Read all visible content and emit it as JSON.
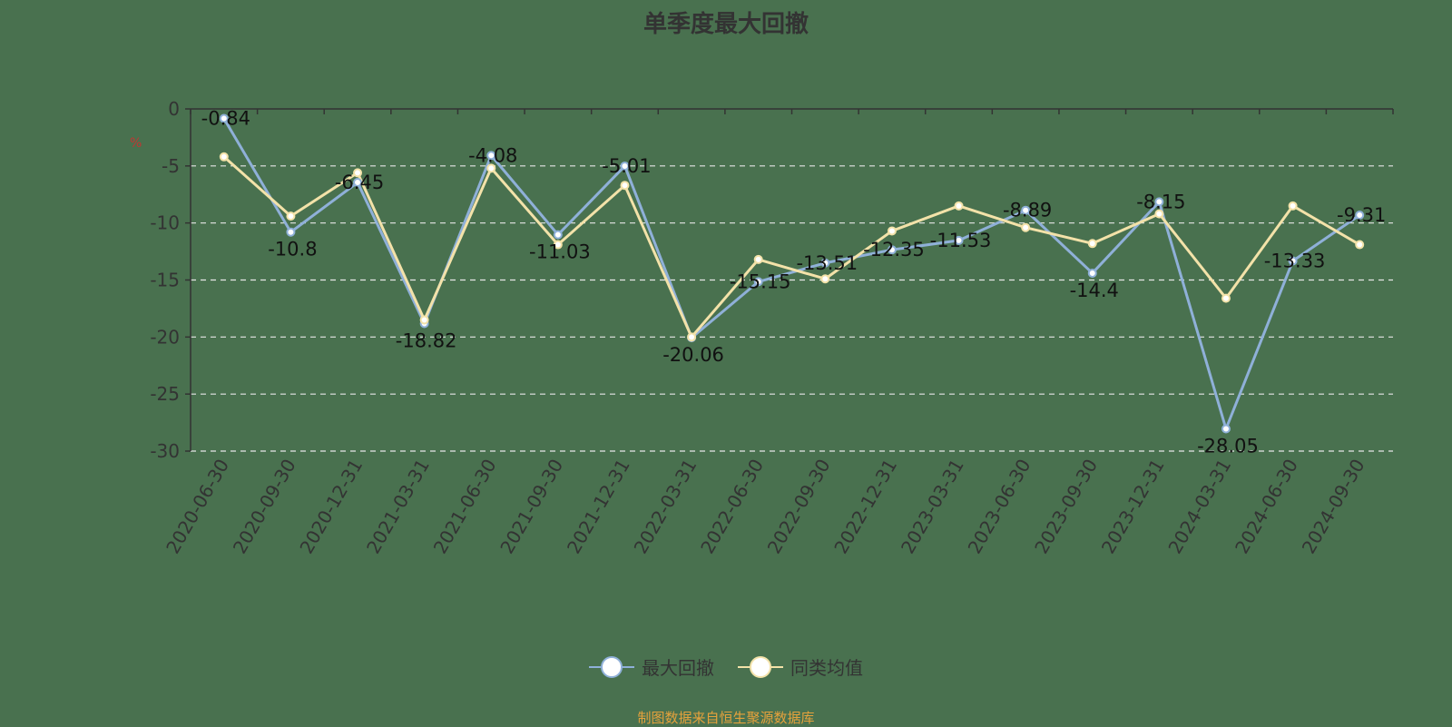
{
  "chart_data": {
    "type": "line",
    "title": "单季度最大回撤",
    "ylabel": "%",
    "source_note": "制图数据来自恒生聚源数据库",
    "ylim": [
      -30,
      0
    ],
    "yticks": [
      0,
      -5,
      -10,
      -15,
      -20,
      -25,
      -30
    ],
    "grid": true,
    "legend_position": "bottom",
    "categories": [
      "2020-06-30",
      "2020-09-30",
      "2020-12-31",
      "2021-03-31",
      "2021-06-30",
      "2021-09-30",
      "2021-12-31",
      "2022-03-31",
      "2022-06-30",
      "2022-09-30",
      "2022-12-31",
      "2023-03-31",
      "2023-06-30",
      "2023-09-30",
      "2023-12-31",
      "2024-03-31",
      "2024-06-30",
      "2024-09-30"
    ],
    "series": [
      {
        "name": "最大回撤",
        "color": "#8fb0d8",
        "values": [
          -0.84,
          -10.8,
          -6.45,
          -18.82,
          -4.08,
          -11.03,
          -5.01,
          -20.06,
          -15.15,
          -13.51,
          -12.35,
          -11.53,
          -8.89,
          -14.4,
          -8.15,
          -28.05,
          -13.33,
          -9.31
        ],
        "labels": [
          "-0.84",
          "-10.8",
          "-6.45",
          "-18.82",
          "-4.08",
          "-11.03",
          "-5.01",
          "-20.06",
          "-15.15",
          "-13.51",
          "-12.35",
          "-11.53",
          "-8.89",
          "-14.4",
          "-8.15",
          "-28.05",
          "-13.33",
          "-9.31"
        ]
      },
      {
        "name": "同类均值",
        "color": "#f3e2a9",
        "values": [
          -4.2,
          -9.4,
          -5.6,
          -18.5,
          -5.2,
          -11.9,
          -6.7,
          -20.0,
          -13.2,
          -14.9,
          -10.7,
          -8.5,
          -10.4,
          -11.8,
          -9.2,
          -16.6,
          -8.5,
          -11.9
        ]
      }
    ]
  }
}
